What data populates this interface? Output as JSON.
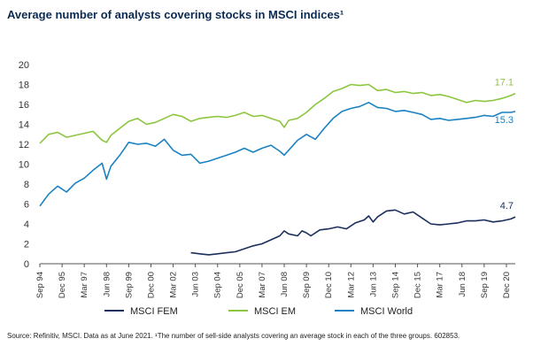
{
  "title": "Average number of analysts covering stocks in MSCI indices¹",
  "source": "Source: Refinitiv, MSCI. Data as at June 2021. ¹The number of sell-side analysts covering an average stock in each of the three groups. 602853.",
  "colors": {
    "fem": "#1b2f5c",
    "em": "#8cc63f",
    "world": "#1a82c3",
    "axis": "#555555"
  },
  "chart_data": {
    "type": "line",
    "title": "Average number of analysts covering stocks in MSCI indices¹",
    "ylim": [
      0,
      20
    ],
    "yticks": [
      0,
      2,
      4,
      6,
      8,
      10,
      12,
      14,
      16,
      18,
      20
    ],
    "grid": false,
    "legend_position": "bottom",
    "x_tick_labels": [
      "Sep 94",
      "Dec 95",
      "Mar 97",
      "Jun 98",
      "Sep 99",
      "Dec 00",
      "Mar 02",
      "Jun 03",
      "Sep 04",
      "Dec 05",
      "Mar 07",
      "Jun 08",
      "Sep 09",
      "Dec 10",
      "Mar 12",
      "Jun 13",
      "Sep 14",
      "Dec 15",
      "Mar 17",
      "Jun 18",
      "Sep 19",
      "Dec 20"
    ],
    "x_range": [
      "1994-09",
      "2021-06"
    ],
    "series": [
      {
        "name": "MSCI FEM",
        "end_label": "4.7",
        "x": [
          "2003-03",
          "2003-09",
          "2004-03",
          "2004-09",
          "2005-03",
          "2005-09",
          "2006-03",
          "2006-09",
          "2007-03",
          "2007-09",
          "2008-03",
          "2008-06",
          "2008-09",
          "2009-03",
          "2009-06",
          "2009-09",
          "2009-12",
          "2010-06",
          "2010-12",
          "2011-06",
          "2011-12",
          "2012-06",
          "2012-12",
          "2013-03",
          "2013-06",
          "2013-09",
          "2014-03",
          "2014-09",
          "2015-03",
          "2015-09",
          "2016-03",
          "2016-09",
          "2017-03",
          "2017-09",
          "2018-03",
          "2018-09",
          "2019-03",
          "2019-09",
          "2020-03",
          "2020-09",
          "2021-03",
          "2021-06"
        ],
        "values": [
          1.1,
          1.0,
          0.9,
          1.0,
          1.1,
          1.2,
          1.5,
          1.8,
          2.0,
          2.4,
          2.8,
          3.3,
          3.0,
          2.8,
          3.3,
          3.1,
          2.8,
          3.4,
          3.5,
          3.7,
          3.5,
          4.1,
          4.4,
          4.8,
          4.2,
          4.7,
          5.3,
          5.4,
          5.0,
          5.2,
          4.6,
          4.0,
          3.9,
          4.0,
          4.1,
          4.3,
          4.3,
          4.4,
          4.2,
          4.3,
          4.5,
          4.7
        ]
      },
      {
        "name": "MSCI EM",
        "end_label": "17.1",
        "x": [
          "1994-09",
          "1995-03",
          "1995-09",
          "1996-03",
          "1996-09",
          "1997-03",
          "1997-09",
          "1998-03",
          "1998-06",
          "1998-09",
          "1999-03",
          "1999-09",
          "2000-03",
          "2000-09",
          "2001-03",
          "2001-09",
          "2002-03",
          "2002-09",
          "2003-03",
          "2003-09",
          "2004-03",
          "2004-09",
          "2005-03",
          "2005-09",
          "2006-03",
          "2006-09",
          "2007-03",
          "2007-09",
          "2008-03",
          "2008-06",
          "2008-09",
          "2009-03",
          "2009-09",
          "2010-03",
          "2010-09",
          "2011-03",
          "2011-09",
          "2012-03",
          "2012-09",
          "2013-03",
          "2013-09",
          "2014-03",
          "2014-09",
          "2015-03",
          "2015-09",
          "2016-03",
          "2016-09",
          "2017-03",
          "2017-09",
          "2018-03",
          "2018-09",
          "2019-03",
          "2019-09",
          "2020-03",
          "2020-09",
          "2021-03",
          "2021-06"
        ],
        "values": [
          12.1,
          13.0,
          13.2,
          12.7,
          12.9,
          13.1,
          13.3,
          12.4,
          12.2,
          12.9,
          13.6,
          14.3,
          14.6,
          14.0,
          14.2,
          14.6,
          15.0,
          14.8,
          14.3,
          14.6,
          14.7,
          14.8,
          14.7,
          14.9,
          15.2,
          14.8,
          14.9,
          14.6,
          14.3,
          13.7,
          14.4,
          14.6,
          15.2,
          16.0,
          16.6,
          17.3,
          17.6,
          18.0,
          17.9,
          18.0,
          17.4,
          17.5,
          17.2,
          17.3,
          17.1,
          17.2,
          16.9,
          17.0,
          16.8,
          16.5,
          16.2,
          16.4,
          16.3,
          16.4,
          16.6,
          16.9,
          17.1
        ]
      },
      {
        "name": "MSCI World",
        "end_label": "15.3",
        "x": [
          "1994-09",
          "1995-03",
          "1995-09",
          "1996-03",
          "1996-09",
          "1997-03",
          "1997-09",
          "1998-03",
          "1998-06",
          "1998-09",
          "1999-03",
          "1999-09",
          "2000-03",
          "2000-09",
          "2001-03",
          "2001-09",
          "2002-03",
          "2002-09",
          "2003-03",
          "2003-09",
          "2004-03",
          "2004-09",
          "2005-03",
          "2005-09",
          "2006-03",
          "2006-09",
          "2007-03",
          "2007-09",
          "2008-03",
          "2008-06",
          "2008-09",
          "2009-03",
          "2009-09",
          "2010-03",
          "2010-09",
          "2011-03",
          "2011-09",
          "2012-03",
          "2012-09",
          "2013-03",
          "2013-09",
          "2014-03",
          "2014-09",
          "2015-03",
          "2015-09",
          "2016-03",
          "2016-09",
          "2017-03",
          "2017-09",
          "2018-03",
          "2018-09",
          "2019-03",
          "2019-09",
          "2020-03",
          "2020-09",
          "2021-03",
          "2021-06"
        ],
        "values": [
          5.8,
          7.0,
          7.8,
          7.2,
          8.1,
          8.6,
          9.4,
          10.1,
          8.5,
          9.8,
          10.9,
          12.2,
          12.0,
          12.1,
          11.8,
          12.5,
          11.4,
          10.9,
          11.0,
          10.1,
          10.3,
          10.6,
          10.9,
          11.2,
          11.6,
          11.2,
          11.6,
          11.9,
          11.3,
          10.9,
          11.4,
          12.4,
          13.0,
          12.5,
          13.6,
          14.6,
          15.3,
          15.6,
          15.8,
          16.2,
          15.7,
          15.6,
          15.3,
          15.4,
          15.2,
          15.0,
          14.5,
          14.6,
          14.4,
          14.5,
          14.6,
          14.7,
          14.9,
          14.8,
          15.2,
          15.2,
          15.3
        ]
      }
    ]
  }
}
